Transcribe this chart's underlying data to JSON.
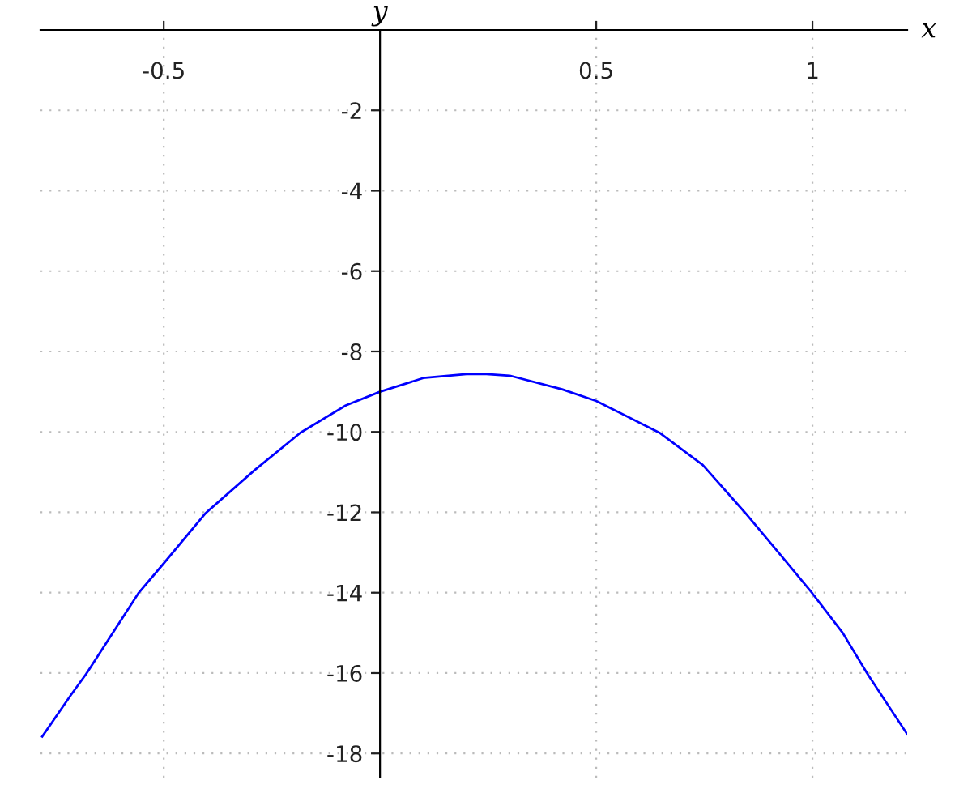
{
  "chart_data": {
    "type": "line",
    "xlabel": "x",
    "ylabel": "y",
    "x": [
      -0.781,
      -0.715,
      -0.678,
      -0.559,
      -0.5,
      -0.403,
      -0.291,
      -0.184,
      -0.079,
      0,
      0.1,
      0.2,
      0.246,
      0.3,
      0.421,
      0.5,
      0.646,
      0.746,
      0.845,
      0.92,
      1.0,
      1.07,
      1.126,
      1.219
    ],
    "series": [
      {
        "color": "#0000ff",
        "values": [
          -17.58,
          -16.55,
          -16.0,
          -14.02,
          -13.27,
          -12.02,
          -10.96,
          -10.02,
          -9.34,
          -9.0,
          -8.66,
          -8.56,
          -8.56,
          -8.6,
          -8.94,
          -9.23,
          -10.02,
          -10.82,
          -12.02,
          -12.98,
          -14.02,
          -15.0,
          -16.0,
          -17.52
        ]
      }
    ],
    "xlim": [
      -0.785,
      1.219
    ],
    "ylim": [
      -18.6,
      0
    ],
    "xticks": [
      -0.5,
      0.5,
      1
    ],
    "yticks": [
      -2,
      -4,
      -6,
      -8,
      -10,
      -12,
      -14,
      -16,
      -18
    ],
    "grid": true,
    "legend": false,
    "marker": "none",
    "line_style": "solid"
  }
}
